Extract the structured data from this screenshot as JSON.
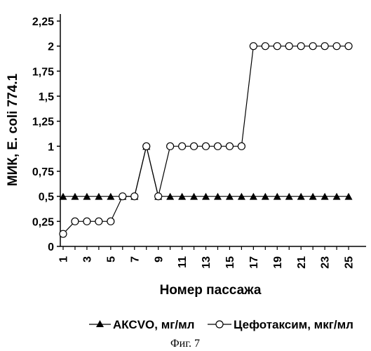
{
  "chart_data": {
    "type": "line",
    "xlabel": "Номер пассажа",
    "ylabel": "МИК, E. coli 774.1",
    "x": [
      1,
      2,
      3,
      4,
      5,
      6,
      7,
      8,
      9,
      10,
      11,
      12,
      13,
      14,
      15,
      16,
      17,
      18,
      19,
      20,
      21,
      22,
      23,
      24,
      25
    ],
    "xticks": [
      "1",
      "3",
      "5",
      "7",
      "9",
      "11",
      "13",
      "15",
      "17",
      "19",
      "21",
      "23",
      "25"
    ],
    "xlim": [
      1,
      26
    ],
    "yticks": [
      "0",
      "0,25",
      "0,5",
      "0,75",
      "1",
      "1,25",
      "1,5",
      "1,75",
      "2",
      "2,25"
    ],
    "ylim": [
      0,
      2.25
    ],
    "grid": false,
    "legend_position": "bottom",
    "series": [
      {
        "name": "АКСVO, мг/мл",
        "marker": "filled-triangle",
        "values": [
          0.5,
          0.5,
          0.5,
          0.5,
          0.5,
          0.5,
          0.5,
          1,
          0.5,
          0.5,
          0.5,
          0.5,
          0.5,
          0.5,
          0.5,
          0.5,
          0.5,
          0.5,
          0.5,
          0.5,
          0.5,
          0.5,
          0.5,
          0.5,
          0.5
        ]
      },
      {
        "name": "Цефотаксим, мкг/мл",
        "marker": "open-circle",
        "values": [
          0.125,
          0.25,
          0.25,
          0.25,
          0.25,
          0.5,
          0.5,
          1,
          0.5,
          1,
          1,
          1,
          1,
          1,
          1,
          1,
          2,
          2,
          2,
          2,
          2,
          2,
          2,
          2,
          2
        ]
      }
    ]
  },
  "caption": "Фиг. 7"
}
